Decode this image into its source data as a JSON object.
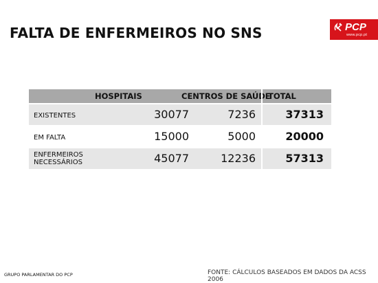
{
  "slide": {
    "title": "FALTA DE ENFERMEIROS NO SNS"
  },
  "logo": {
    "name": "PCP",
    "url": "www.pcp.pt",
    "color": "#d7141b"
  },
  "table": {
    "headers": [
      "HOSPITAIS",
      "CENTROS DE SAÚDE",
      "TOTAL"
    ],
    "rows": [
      {
        "label": "EXISTENTES",
        "hospitais": "30077",
        "centros": "7236",
        "total": "37313"
      },
      {
        "label": "EM FALTA",
        "hospitais": "15000",
        "centros": "5000",
        "total": "20000"
      },
      {
        "label_line1": "ENFERMEIROS",
        "label_line2": "NECESSÁRIOS",
        "hospitais": "45077",
        "centros": "12236",
        "total": "57313"
      }
    ]
  },
  "footer": {
    "left": "GRUPO PARLAMENTAR DO PCP",
    "right": "FONTE: CÁLCULOS BASEADOS EM DADOS DA ACSS 2006"
  }
}
